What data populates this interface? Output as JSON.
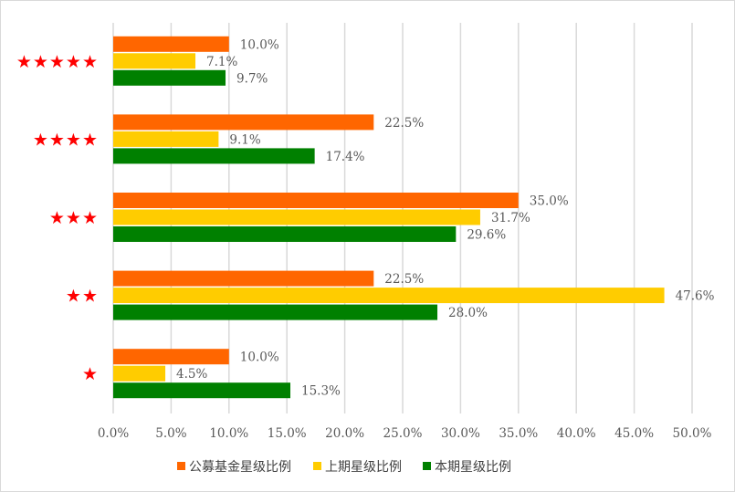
{
  "chart_data": {
    "type": "bar",
    "orientation": "horizontal",
    "title": "",
    "categories": [
      "★★★★★",
      "★★★★",
      "★★★",
      "★★",
      "★"
    ],
    "series": [
      {
        "name": "公募基金星级比例",
        "color": "#FF6600",
        "values": [
          10.0,
          22.5,
          35.0,
          22.5,
          10.0
        ],
        "labels": [
          "10.0%",
          "22.5%",
          "35.0%",
          "22.5%",
          "10.0%"
        ]
      },
      {
        "name": "上期星级比例",
        "color": "#FFCC00",
        "values": [
          7.1,
          9.1,
          31.7,
          47.6,
          4.5
        ],
        "labels": [
          "7.1%",
          "9.1%",
          "31.7%",
          "47.6%",
          "4.5%"
        ]
      },
      {
        "name": "本期星级比例",
        "color": "#008000",
        "values": [
          9.7,
          17.4,
          29.6,
          28.0,
          15.3
        ],
        "labels": [
          "9.7%",
          "17.4%",
          "29.6%",
          "28.0%",
          "15.3%"
        ]
      }
    ],
    "xlim": [
      0,
      50
    ],
    "xticks": [
      "0.0%",
      "5.0%",
      "10.0%",
      "15.0%",
      "20.0%",
      "25.0%",
      "30.0%",
      "35.0%",
      "40.0%",
      "45.0%",
      "50.0%"
    ],
    "grid": true,
    "legend": "bottom"
  }
}
